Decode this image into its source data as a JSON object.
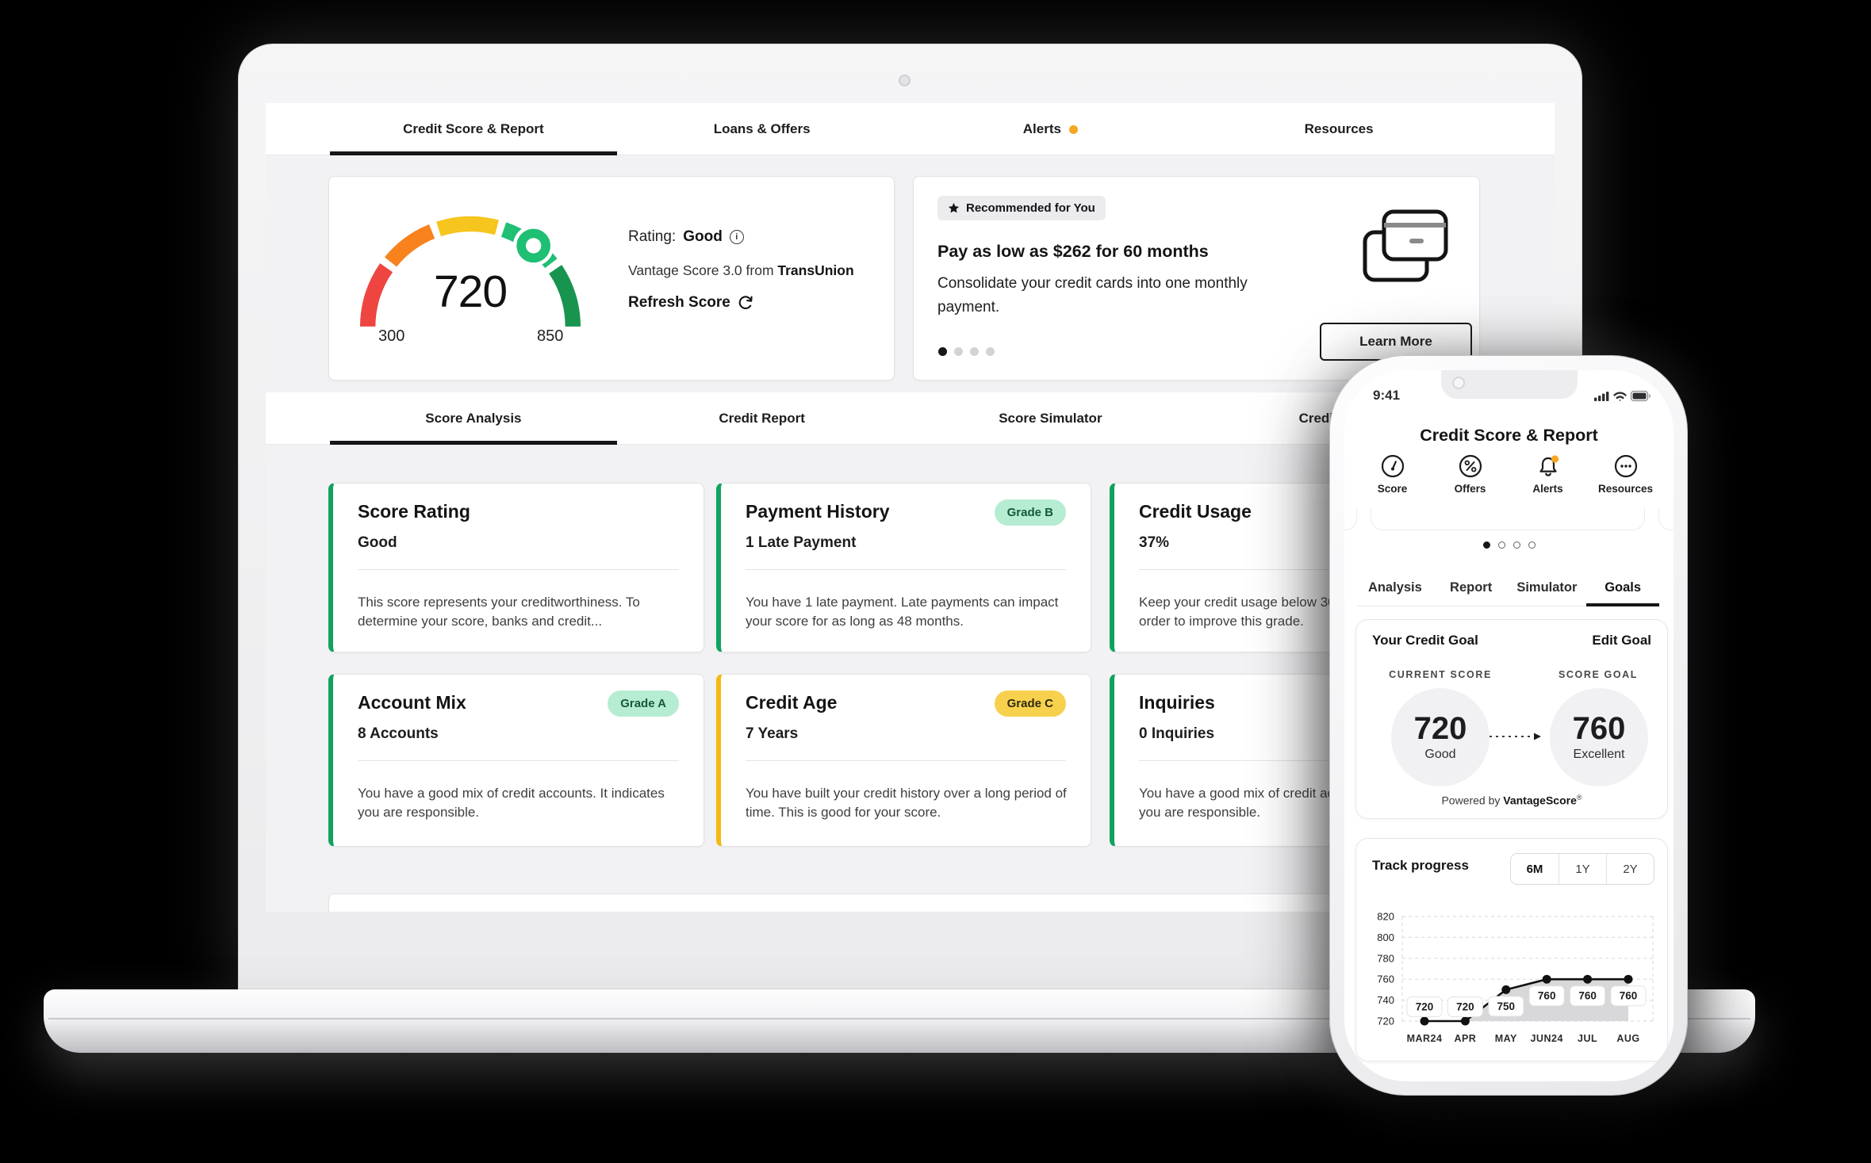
{
  "laptop_nav": {
    "tabs": [
      {
        "label": "Credit Score & Report",
        "active": true
      },
      {
        "label": "Loans & Offers",
        "active": false
      },
      {
        "label": "Alerts",
        "active": false,
        "badge_dot_color": "#f6a723"
      },
      {
        "label": "Resources",
        "active": false
      }
    ]
  },
  "score_panel": {
    "score": "720",
    "min": "300",
    "max": "850",
    "rating_label": "Rating:",
    "rating_value": "Good",
    "provider_prefix": "Vantage Score 3.0 from ",
    "provider_bold": "TransUnion",
    "refresh_label": "Refresh Score",
    "gauge_colors": [
      "#ee4541",
      "#f8821d",
      "#f6c51e",
      "#1fbf74",
      "#18944f"
    ]
  },
  "offer_card": {
    "badge": "Recommended for You",
    "title": "Pay as low as $262 for 60 months",
    "body": "Consolidate your credit cards into one monthly payment.",
    "cta": "Learn More",
    "dot_count": 4,
    "active_dot": 0,
    "icon": "credit-cards-icon"
  },
  "section_tabs": [
    {
      "label": "Score Analysis",
      "active": true
    },
    {
      "label": "Credit Report",
      "active": false
    },
    {
      "label": "Score Simulator",
      "active": false
    },
    {
      "label": "Credit Goals",
      "active": false
    }
  ],
  "analysis_cards": [
    {
      "title": "Score Rating",
      "value": "Good",
      "accent": "green",
      "body": "This score represents your creditworthiness. To determine your score, banks and credit..."
    },
    {
      "title": "Payment History",
      "badge": "Grade B",
      "value": "1 Late Payment",
      "accent": "green",
      "body": "You have 1 late payment. Late payments can impact your score for as long as 48 months."
    },
    {
      "title": "Credit Usage",
      "value": "37%",
      "accent": "green",
      "body": "Keep your credit usage below 30% on all cards in order to improve this grade."
    },
    {
      "title": "Account Mix",
      "badge": "Grade A",
      "value": "8 Accounts",
      "accent": "green",
      "body": "You have a good mix of credit accounts. It indicates you are responsible."
    },
    {
      "title": "Credit Age",
      "badge": "Grade C",
      "value": "7 Years",
      "accent": "yellow",
      "body": "You have built your credit history over a long period of time. This is good for your score."
    },
    {
      "title": "Inquiries",
      "value": "0 Inquiries",
      "accent": "green",
      "body": "You have a good mix of credit accounts. It indicates you are responsible."
    }
  ],
  "badge_colors": {
    "mint_bg": "#b6edd2",
    "mint_text": "#14593e",
    "gold_bg": "#f7d14e"
  },
  "phone": {
    "status_time": "9:41",
    "title": "Credit Score & Report",
    "nav": [
      {
        "icon": "gauge-icon",
        "label": "Score"
      },
      {
        "icon": "percent-icon",
        "label": "Offers"
      },
      {
        "icon": "bell-icon",
        "label": "Alerts",
        "badge_dot_color": "#f6a723"
      },
      {
        "icon": "dots-icon",
        "label": "Resources"
      }
    ],
    "carousel": {
      "dot_count": 4,
      "active_dot": 0
    },
    "tabs": [
      {
        "label": "Analysis",
        "active": false
      },
      {
        "label": "Report",
        "active": false
      },
      {
        "label": "Simulator",
        "active": false
      },
      {
        "label": "Goals",
        "active": true
      }
    ],
    "goal_card": {
      "title": "Your Credit Goal",
      "edit": "Edit Goal",
      "current_label": "CURRENT SCORE",
      "current_score": "720",
      "current_rating": "Good",
      "goal_label": "SCORE GOAL",
      "goal_score": "760",
      "goal_rating": "Excellent",
      "powered_prefix": "Powered by ",
      "powered_bold": "VantageScore",
      "powered_reg": "®"
    },
    "track_card": {
      "title": "Track progress",
      "ranges": [
        {
          "label": "6M",
          "active": true
        },
        {
          "label": "1Y",
          "active": false
        },
        {
          "label": "2Y",
          "active": false
        }
      ]
    }
  },
  "chart_data": {
    "type": "line",
    "title": "Track progress",
    "x": [
      "MAR24",
      "APR",
      "MAY",
      "JUN24",
      "JUL",
      "AUG"
    ],
    "values": [
      720,
      720,
      750,
      760,
      760,
      760
    ],
    "point_labels": [
      "720",
      "720",
      "750",
      "760",
      "760",
      "760"
    ],
    "ylim": [
      720,
      820
    ],
    "yticks": [
      720,
      740,
      760,
      780,
      800,
      820
    ],
    "grid": true,
    "grid_style": "dashed",
    "area_fill": true,
    "area_color": "#d8d8da",
    "line_color": "#111111",
    "legend": "none"
  }
}
